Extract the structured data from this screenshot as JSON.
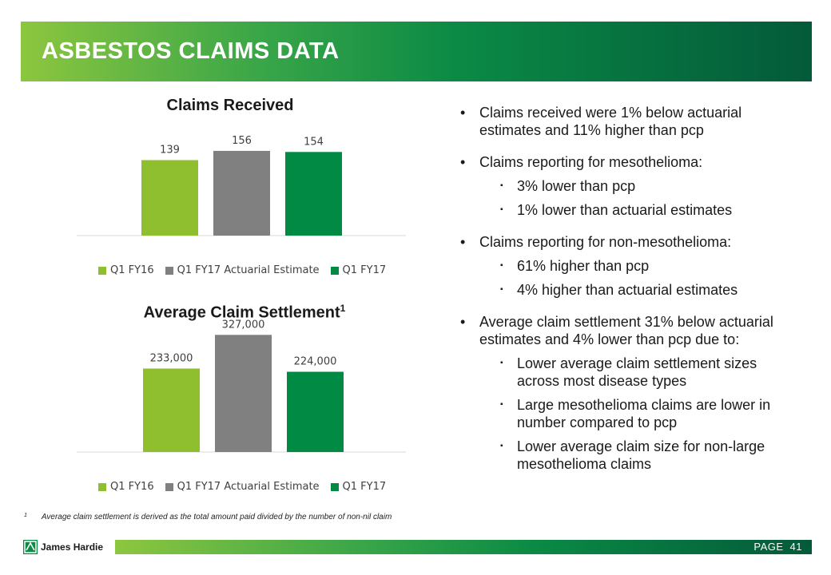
{
  "header": {
    "title": "ASBESTOS CLAIMS DATA"
  },
  "colors": {
    "q1fy16": "#8fbf2f",
    "estimate": "#808080",
    "q1fy17": "#008a43"
  },
  "chart_data": [
    {
      "type": "bar",
      "title": "Claims Received",
      "categories": [
        "Q1 FY16",
        "Q1 FY17 Actuarial Estimate",
        "Q1 FY17"
      ],
      "values": [
        139,
        156,
        154
      ],
      "labels": [
        "139",
        "156",
        "154"
      ],
      "ylim": [
        0,
        175
      ],
      "legend": "bottom"
    },
    {
      "type": "bar",
      "title": "Average Claim Settlement",
      "title_superscript": "1",
      "categories": [
        "Q1 FY16",
        "Q1 FY17 Actuarial Estimate",
        "Q1 FY17"
      ],
      "values": [
        233000,
        327000,
        224000
      ],
      "labels": [
        "233,000",
        "327,000",
        "224,000"
      ],
      "ylim": [
        0,
        350000
      ],
      "legend": "bottom"
    }
  ],
  "footnote": {
    "mark": "1",
    "text": "Average claim settlement is derived as the total amount paid divided by the number of non-nil claim"
  },
  "bullets": [
    {
      "text": "Claims received were 1% below actuarial estimates and 11% higher than pcp",
      "sub": []
    },
    {
      "text": "Claims reporting for mesothelioma:",
      "sub": [
        "3% lower than pcp",
        "1% lower than actuarial estimates"
      ]
    },
    {
      "text": "Claims reporting for non-mesothelioma:",
      "sub": [
        "61% higher than pcp",
        "4% higher than actuarial estimates"
      ]
    },
    {
      "text": "Average claim settlement 31% below actuarial estimates and 4% lower than pcp due to:",
      "sub": [
        "Lower average claim settlement sizes across most disease types",
        "Large mesothelioma claims are lower in number compared to pcp",
        "Lower average claim size for non-large mesothelioma claims"
      ]
    }
  ],
  "footer": {
    "logo_text": "James Hardie",
    "page_label": "PAGE",
    "page_number": "41"
  }
}
